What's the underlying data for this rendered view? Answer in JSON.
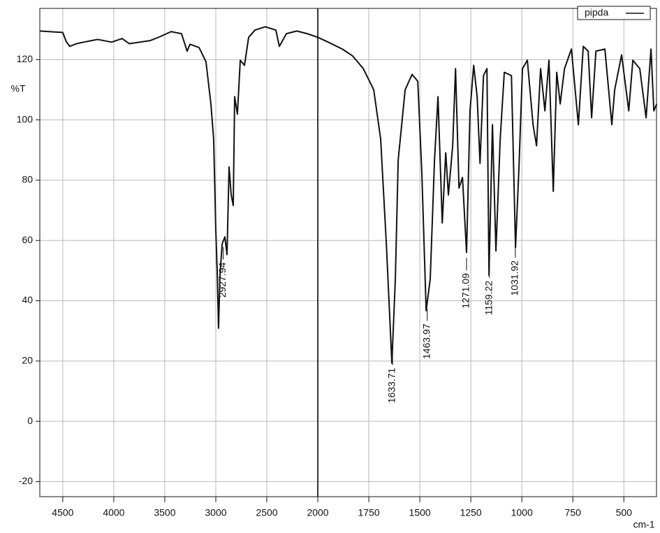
{
  "chart_data": {
    "type": "line",
    "y_label": "%T",
    "x_label": "cm-1",
    "xlim": [
      4725,
      340
    ],
    "xticks": [
      4500,
      4000,
      3500,
      3000,
      2500,
      2000,
      1750,
      1500,
      1250,
      1000,
      750,
      500
    ],
    "ylim": [
      -25,
      137
    ],
    "yticks": [
      -20,
      0,
      20,
      40,
      60,
      80,
      100,
      120
    ],
    "grid": true,
    "legend": "top-right",
    "series": [
      {
        "name": "pipda",
        "color": "#111111",
        "x": [
          4726,
          4500,
          4466,
          4432,
          4363,
          4295,
          4158,
          4021,
          3918,
          3849,
          3747,
          3644,
          3541,
          3438,
          3336,
          3281,
          3253,
          3164,
          3096,
          3048,
          3021,
          3000,
          2986,
          2973,
          2959,
          2938,
          2911,
          2890,
          2870,
          2849,
          2829,
          2815,
          2788,
          2760,
          2719,
          2678,
          2616,
          2514,
          2411,
          2377,
          2308,
          2206,
          2103,
          2000,
          1949,
          1880,
          1829,
          1777,
          1726,
          1692,
          1664,
          1637,
          1620,
          1606,
          1572,
          1538,
          1510,
          1490,
          1469,
          1449,
          1428,
          1411,
          1390,
          1373,
          1360,
          1339,
          1325,
          1308,
          1291,
          1271,
          1254,
          1236,
          1219,
          1205,
          1188,
          1171,
          1161,
          1144,
          1127,
          1106,
          1086,
          1051,
          1031,
          1014,
          997,
          973,
          945,
          928,
          908,
          887,
          867,
          846,
          829,
          812,
          791,
          757,
          723,
          699,
          675,
          658,
          637,
          593,
          559,
          545,
          511,
          476,
          456,
          422,
          391,
          367,
          353,
          339
        ],
        "values": [
          129.5,
          129,
          126,
          124.4,
          125.3,
          125.8,
          126.7,
          125.8,
          127,
          125.3,
          125.8,
          126.3,
          127.7,
          129.3,
          128.6,
          122.8,
          125.1,
          124,
          119.3,
          105.3,
          93.7,
          63.5,
          49.5,
          30.9,
          48.4,
          58.8,
          61.2,
          55.3,
          84.4,
          75.1,
          71.6,
          107.7,
          101.9,
          119.8,
          118.1,
          127.4,
          129.8,
          130.9,
          129.8,
          124.4,
          128.6,
          129.5,
          128.6,
          127.4,
          125.8,
          123.5,
          121.2,
          117,
          110,
          93.7,
          58.8,
          19.3,
          47.2,
          86.7,
          110,
          115.1,
          112.8,
          82.1,
          36.7,
          47.2,
          86.7,
          107.7,
          65.8,
          89.1,
          75.1,
          91.4,
          117,
          77.4,
          80.9,
          56,
          103,
          118.1,
          107.7,
          85.6,
          114.7,
          117,
          48.4,
          98.4,
          56.5,
          93.7,
          115.8,
          114.7,
          57.7,
          84.4,
          117,
          119.8,
          98.4,
          91.4,
          117,
          103,
          119.8,
          76.3,
          115.8,
          105.3,
          117,
          123.5,
          98.4,
          124.4,
          122.8,
          100.7,
          122.8,
          123.5,
          98.4,
          110,
          121.6,
          103,
          119.8,
          117,
          100.7,
          123.5,
          103,
          105.3
        ]
      }
    ],
    "peak_labels": [
      2927.94,
      1633.71,
      1463.97,
      1271.09,
      1159.22,
      1031.92
    ]
  }
}
